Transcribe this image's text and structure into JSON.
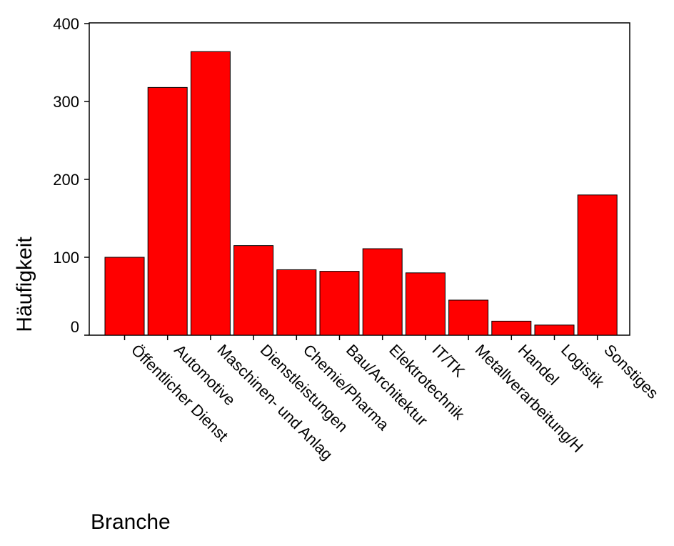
{
  "chart_data": {
    "type": "bar",
    "categories": [
      "Öffentlicher Dienst",
      "Automotive",
      "Maschinen- und Anlag",
      "Dienstleistungen",
      "Chemie/Pharma",
      "Bau/Architektur",
      "Elektrotechnik",
      "IT/TK",
      "Metallverarbeitung/H",
      "Handel",
      "Logistik",
      "Sonstiges"
    ],
    "values": [
      100,
      318,
      364,
      115,
      84,
      82,
      111,
      80,
      45,
      18,
      13,
      180
    ],
    "title": "",
    "xlabel": "Branche",
    "ylabel": "Häufigkeit",
    "ylim": [
      0,
      400
    ],
    "yticks": [
      "0",
      "100",
      "200",
      "300",
      "400"
    ],
    "grid": false,
    "colors": {
      "bar": "#ff0000",
      "bar_edge": "#000000",
      "axis": "#000000"
    }
  }
}
